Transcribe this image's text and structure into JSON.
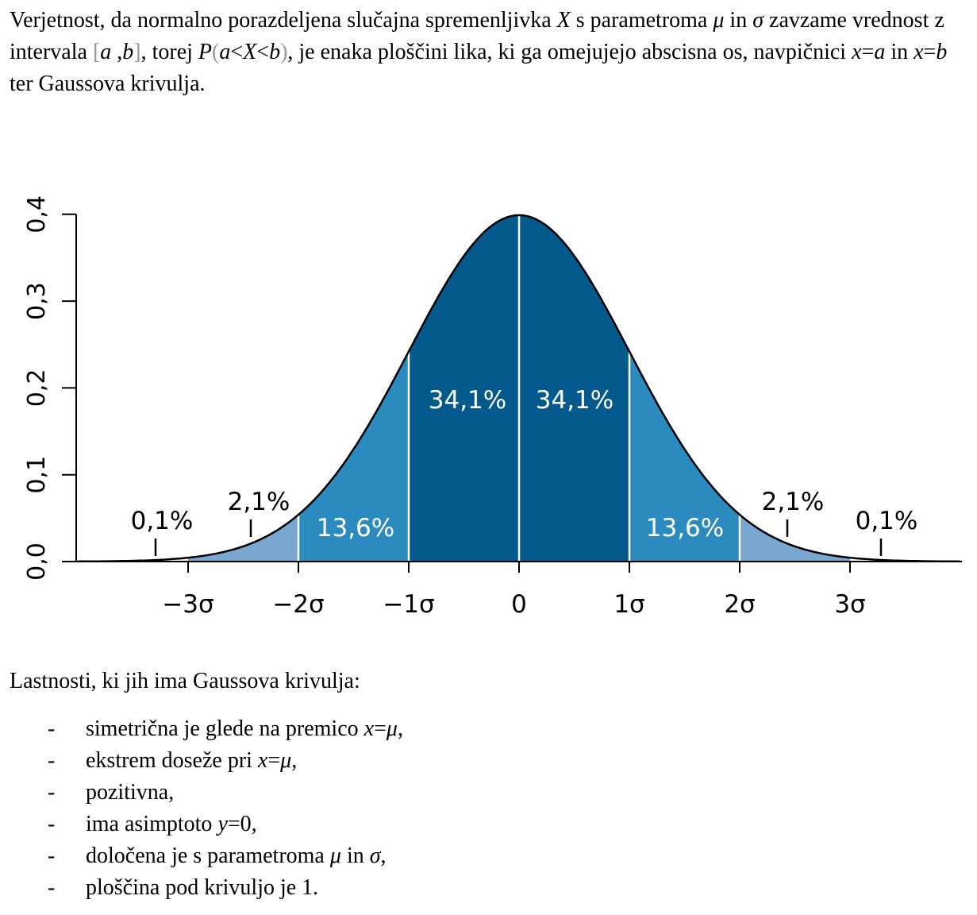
{
  "intro": {
    "t1": "Verjetnost, da normalno porazdeljena slučajna spremenljivka ",
    "X": "X",
    "t2": " s parametroma ",
    "mu": "μ",
    "t3": " in ",
    "sigma": "σ",
    "t4": " zavzame vrednost z intervala ",
    "lbr": "[",
    "a": "a",
    "comma": " ,",
    "b": "b",
    "rbr": "]",
    "t5": ", torej ",
    "P": "P",
    "lpar": "(",
    "ineq_a": "a",
    "lt1": "<",
    "ineq_X": "X",
    "lt2": "<",
    "ineq_b": "b",
    "rpar": ")",
    "t6": ", je enaka ploščini lika, ki ga omejujejo abscisna os, navpičnici ",
    "x1": "x",
    "eq1": "=",
    "a2": "a",
    "t7": " in ",
    "x2": "x",
    "eq2": "=",
    "b2": "b",
    "t8": " ter Gaussova krivulja."
  },
  "chart_data": {
    "type": "area",
    "x_ticks": [
      {
        "value": -3,
        "label": "−3σ"
      },
      {
        "value": -2,
        "label": "−2σ"
      },
      {
        "value": -1,
        "label": "−1σ"
      },
      {
        "value": 0,
        "label": "0"
      },
      {
        "value": 1,
        "label": "1σ"
      },
      {
        "value": 2,
        "label": "2σ"
      },
      {
        "value": 3,
        "label": "3σ"
      }
    ],
    "y_ticks": [
      {
        "value": 0.0,
        "label": "0,0"
      },
      {
        "value": 0.1,
        "label": "0,1"
      },
      {
        "value": 0.2,
        "label": "0,2"
      },
      {
        "value": 0.3,
        "label": "0,3"
      },
      {
        "value": 0.4,
        "label": "0,4"
      }
    ],
    "xlim": [
      -4,
      4
    ],
    "ylim": [
      0,
      0.4
    ],
    "regions": [
      {
        "from": -3,
        "to": -2,
        "label": "2,1%",
        "color": "#7aa7cf"
      },
      {
        "from": -2,
        "to": -1,
        "label": "13,6%",
        "color": "#2b8bbf"
      },
      {
        "from": -1,
        "to": 0,
        "label": "34,1%",
        "color": "#045a8d"
      },
      {
        "from": 0,
        "to": 1,
        "label": "34,1%",
        "color": "#045a8d"
      },
      {
        "from": 1,
        "to": 2,
        "label": "13,6%",
        "color": "#2b8bbf"
      },
      {
        "from": 2,
        "to": 3,
        "label": "2,1%",
        "color": "#7aa7cf"
      }
    ],
    "tails": [
      {
        "side": "left",
        "label": "0,1%"
      },
      {
        "side": "right",
        "label": "0,1%"
      }
    ]
  },
  "props": {
    "title": "Lastnosti, ki jih ima Gaussova krivulja:",
    "bullet": "-",
    "items": [
      {
        "a": "simetrična je glede na premico ",
        "x": "x",
        "eq": "=",
        "v": "μ",
        "b": ","
      },
      {
        "a": "ekstrem doseže pri ",
        "x": "x",
        "eq": "=",
        "v": "μ",
        "b": ","
      },
      {
        "a": "pozitivna,"
      },
      {
        "a": "ima asimptoto ",
        "x": "y",
        "eq": "=",
        "v": "0",
        "b": ","
      },
      {
        "a": "določena je s parametroma ",
        "x": "μ",
        "mid": " in ",
        "v2": "σ",
        "b": ","
      },
      {
        "a": "ploščina pod krivuljo je 1."
      }
    ]
  }
}
